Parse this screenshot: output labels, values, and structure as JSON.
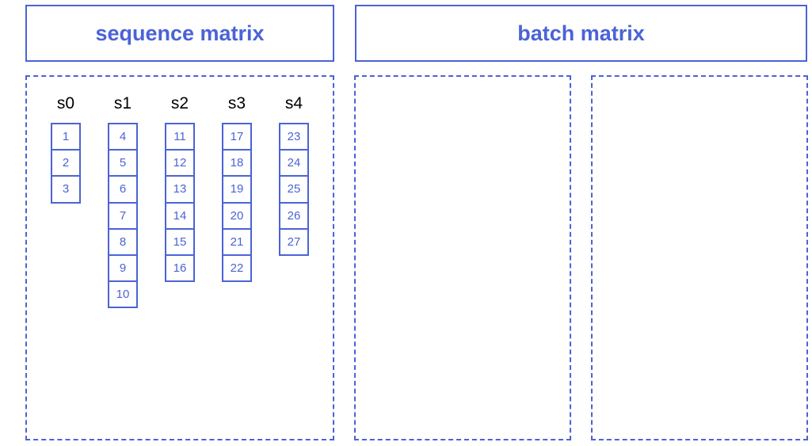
{
  "headers": {
    "sequence_matrix": "sequence matrix",
    "batch_matrix": "batch matrix"
  },
  "sequences": [
    {
      "label": "s0",
      "tokens": [
        "1",
        "2",
        "3"
      ]
    },
    {
      "label": "s1",
      "tokens": [
        "4",
        "5",
        "6",
        "7",
        "8",
        "9",
        "10"
      ]
    },
    {
      "label": "s2",
      "tokens": [
        "11",
        "12",
        "13",
        "14",
        "15",
        "16"
      ]
    },
    {
      "label": "s3",
      "tokens": [
        "17",
        "18",
        "19",
        "20",
        "21",
        "22"
      ]
    },
    {
      "label": "s4",
      "tokens": [
        "23",
        "24",
        "25",
        "26",
        "27"
      ]
    }
  ],
  "colors": {
    "accent": "#4b63d6",
    "label_text": "#000000",
    "background": "#ffffff"
  }
}
